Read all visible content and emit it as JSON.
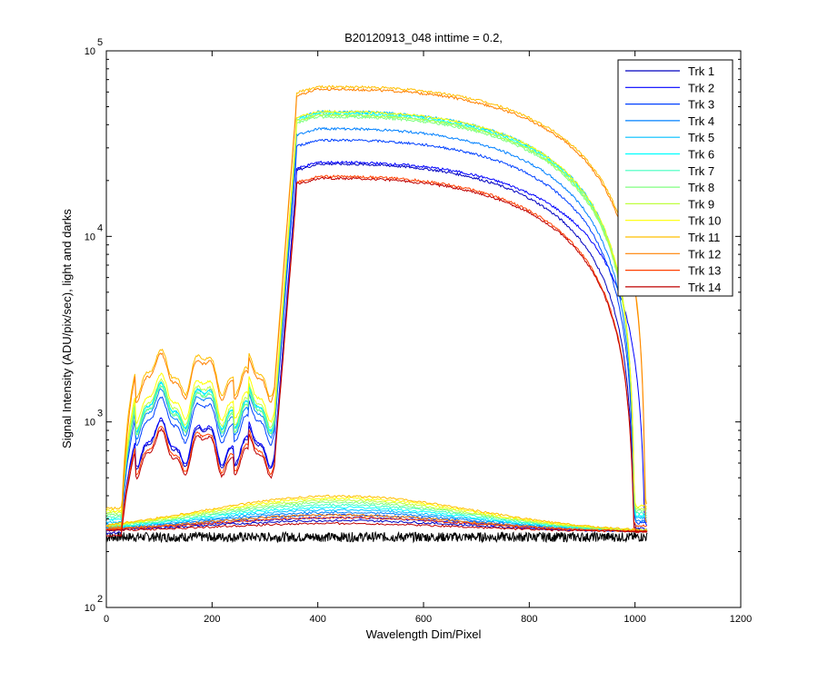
{
  "chart_data": {
    "type": "line",
    "title": "B20120913_048 inttime = 0.2,",
    "xlabel": "Wavelength Dim/Pixel",
    "ylabel": "Signal Intensity (ADU/pix/sec), light and darks",
    "xlim": [
      0,
      1200
    ],
    "ylim": [
      100,
      100000
    ],
    "yscale": "log",
    "x_ticks": [
      "0",
      "200",
      "400",
      "600",
      "800",
      "1000",
      "1200"
    ],
    "y_tick_bases": [
      "10",
      "10",
      "10",
      "10"
    ],
    "y_tick_exponents": [
      "2",
      "3",
      "4",
      "5"
    ],
    "grid": false,
    "legend_position": "top-right",
    "series": [
      {
        "name": "Trk 1",
        "color": "#0000bf",
        "dark_level": 280,
        "light": {
          "plateau": 780,
          "peak": 24500,
          "end": 1000
        }
      },
      {
        "name": "Trk 2",
        "color": "#0000ff",
        "dark_level": 290,
        "light": {
          "plateau": 800,
          "peak": 25000,
          "end": 1020
        }
      },
      {
        "name": "Trk 3",
        "color": "#0040ff",
        "dark_level": 300,
        "light": {
          "plateau": 1050,
          "peak": 33000,
          "end": 1000
        }
      },
      {
        "name": "Trk 4",
        "color": "#0080ff",
        "dark_level": 310,
        "light": {
          "plateau": 1150,
          "peak": 38000,
          "end": 1000
        }
      },
      {
        "name": "Trk 5",
        "color": "#00bfff",
        "dark_level": 320,
        "light": {
          "plateau": 1250,
          "peak": 47000,
          "end": 1000
        }
      },
      {
        "name": "Trk 6",
        "color": "#00ffff",
        "dark_level": 330,
        "light": {
          "plateau": 1250,
          "peak": 46000,
          "end": 1000
        }
      },
      {
        "name": "Trk 7",
        "color": "#40ffbf",
        "dark_level": 340,
        "light": {
          "plateau": 1200,
          "peak": 45000,
          "end": 1000
        }
      },
      {
        "name": "Trk 8",
        "color": "#80ff80",
        "dark_level": 350,
        "light": {
          "plateau": 1200,
          "peak": 44000,
          "end": 1000
        }
      },
      {
        "name": "Trk 9",
        "color": "#bfff40",
        "dark_level": 360,
        "light": {
          "plateau": 1300,
          "peak": 45000,
          "end": 1000
        }
      },
      {
        "name": "Trk 10",
        "color": "#ffff00",
        "dark_level": 370,
        "light": {
          "plateau": 1400,
          "peak": 47000,
          "end": 1000
        }
      },
      {
        "name": "Trk 11",
        "color": "#ffbf00",
        "dark_level": 380,
        "light": {
          "plateau": 1900,
          "peak": 64000,
          "end": 1020
        }
      },
      {
        "name": "Trk 12",
        "color": "#ff8000",
        "dark_level": 300,
        "light": {
          "plateau": 1800,
          "peak": 62000,
          "end": 1020
        }
      },
      {
        "name": "Trk 13",
        "color": "#ff4000",
        "dark_level": 290,
        "light": {
          "plateau": 730,
          "peak": 21000,
          "end": 1000
        }
      },
      {
        "name": "Trk 14",
        "color": "#bf0000",
        "dark_level": 270,
        "light": {
          "plateau": 700,
          "peak": 20500,
          "end": 1000
        }
      }
    ],
    "dark_baseline": {
      "color": "#000000",
      "level": 240,
      "x_range": [
        0,
        1023
      ]
    }
  }
}
